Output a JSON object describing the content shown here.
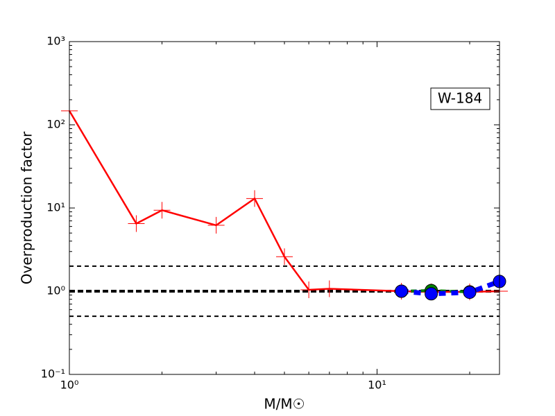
{
  "chart_data": {
    "type": "line",
    "xlabel": "M/M☉",
    "ylabel": "Overproduction factor",
    "annotation": "W-184",
    "xlog": true,
    "ylog": true,
    "xlim": [
      1,
      25
    ],
    "ylim": [
      0.1,
      1000
    ],
    "xticks": [
      {
        "value": 1,
        "label": "10⁰"
      },
      {
        "value": 10,
        "label": "10¹"
      }
    ],
    "yticks": [
      {
        "value": 0.1,
        "label": "10⁻¹"
      },
      {
        "value": 1,
        "label": "10⁰"
      },
      {
        "value": 10,
        "label": "10¹"
      },
      {
        "value": 100,
        "label": "10²"
      },
      {
        "value": 1000,
        "label": "10³"
      }
    ],
    "hlines": [
      0.5,
      1,
      2
    ],
    "hline_bold": 1,
    "series": [
      {
        "color": "#ff0000",
        "linestyle": "solid",
        "marker": "plus",
        "x": [
          1,
          1.65,
          2,
          3,
          4,
          5,
          6,
          7,
          12,
          15,
          20,
          25
        ],
        "values": [
          147,
          6.5,
          9.4,
          6.2,
          13,
          2.6,
          1.04,
          1.07,
          1.0,
          0.98,
          0.98,
          1.0
        ]
      },
      {
        "color": "#008000",
        "linestyle": "dashed",
        "marker": "circle",
        "x": [
          12,
          15,
          20
        ],
        "values": [
          1.0,
          1.02,
          0.98
        ]
      },
      {
        "color": "#0000ff",
        "linestyle": "dashed-thick",
        "marker": "circle",
        "x": [
          12,
          15,
          20,
          25
        ],
        "values": [
          1.0,
          0.93,
          0.97,
          1.31
        ]
      }
    ]
  }
}
